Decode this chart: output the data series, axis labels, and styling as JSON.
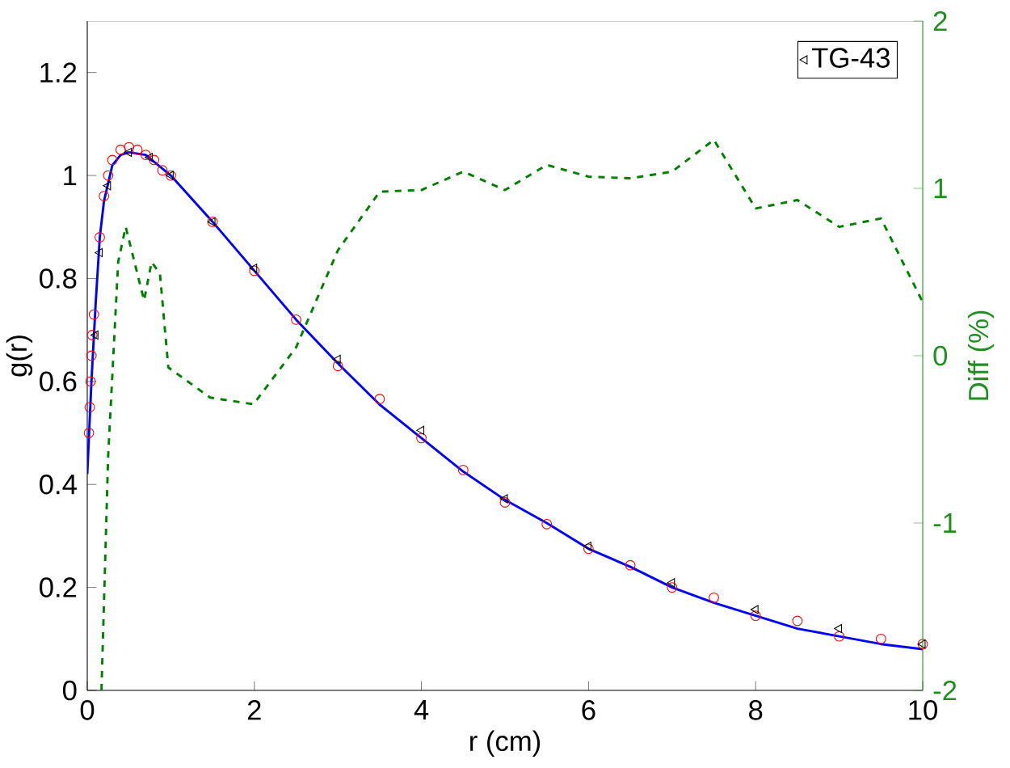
{
  "chart_data": {
    "type": "line",
    "xlabel": "r (cm)",
    "ylabel": "g(r)",
    "y2label": "Diff (%)",
    "xlim": [
      0,
      10
    ],
    "xticks": [
      0,
      2,
      4,
      6,
      8,
      10
    ],
    "ylim": [
      0,
      1.3
    ],
    "yticks": [
      0,
      0.2,
      0.4,
      0.6,
      0.8,
      1,
      1.2
    ],
    "y2lim": [
      -2,
      2
    ],
    "y2ticks": [
      -2,
      -1,
      0,
      1,
      2
    ],
    "legend": "top right",
    "grid": false,
    "series": [
      {
        "type": "scatter",
        "marker": "circle",
        "color": "#ff0000",
        "x": [
          0.02,
          0.03,
          0.04,
          0.05,
          0.06,
          0.08,
          0.15,
          0.2,
          0.25,
          0.3,
          0.4,
          0.5,
          0.6,
          0.7,
          0.8,
          0.9,
          1.0,
          1.5,
          2,
          2.5,
          3,
          3.5,
          4,
          4.5,
          5,
          5.5,
          6,
          6.5,
          7,
          7.5,
          8,
          8.5,
          9,
          9.5,
          10
        ],
        "values": [
          0.5,
          0.55,
          0.6,
          0.65,
          0.69,
          0.73,
          0.88,
          0.96,
          1.0,
          1.03,
          1.05,
          1.055,
          1.05,
          1.04,
          1.03,
          1.01,
          1.0,
          0.91,
          0.815,
          0.72,
          0.63,
          0.566,
          0.49,
          0.428,
          0.365,
          0.323,
          0.275,
          0.243,
          0.2,
          0.18,
          0.145,
          0.135,
          0.105,
          0.1,
          0.09
        ]
      },
      {
        "type": "scatter",
        "marker": "triangle",
        "color": "#000000",
        "name": "TG-43",
        "x": [
          0.1,
          0.15,
          0.25,
          0.5,
          0.75,
          1.0,
          1.5,
          2,
          3,
          4,
          5,
          6,
          7,
          8,
          9,
          10
        ],
        "values": [
          0.69,
          0.85,
          0.98,
          1.045,
          1.035,
          1.0,
          0.91,
          0.82,
          0.643,
          0.505,
          0.372,
          0.28,
          0.209,
          0.157,
          0.12,
          0.09
        ]
      },
      {
        "line_style": "solid",
        "color": "#0000ff",
        "x": [
          0,
          0.05,
          0.1,
          0.15,
          0.2,
          0.3,
          0.4,
          0.5,
          0.7,
          1.0,
          1.5,
          2,
          2.5,
          3,
          3.5,
          4,
          4.5,
          5,
          5.5,
          6,
          6.5,
          7,
          7.5,
          8,
          8.5,
          9,
          9.5,
          10
        ],
        "values": [
          0.42,
          0.6,
          0.75,
          0.88,
          0.95,
          1.02,
          1.04,
          1.045,
          1.04,
          1.0,
          0.91,
          0.815,
          0.72,
          0.635,
          0.555,
          0.49,
          0.425,
          0.37,
          0.325,
          0.275,
          0.24,
          0.2,
          0.17,
          0.145,
          0.12,
          0.105,
          0.09,
          0.08
        ]
      },
      {
        "line_style": "dashed",
        "axis": "y2",
        "color": "#008000",
        "x": [
          0.17,
          0.25,
          0.37,
          0.46,
          0.68,
          0.77,
          0.87,
          0.97,
          1.47,
          1.99,
          2.5,
          3,
          3.5,
          4,
          4.5,
          5,
          5.5,
          6,
          6.5,
          7,
          7.5,
          8,
          8.5,
          9,
          9.5,
          10
        ],
        "values": [
          -2,
          -0.6,
          0.56,
          0.77,
          0.33,
          0.56,
          0.49,
          -0.07,
          -0.25,
          -0.29,
          0.05,
          0.63,
          0.98,
          0.99,
          1.1,
          0.99,
          1.14,
          1.07,
          1.06,
          1.1,
          1.29,
          0.88,
          0.93,
          0.77,
          0.82,
          0.32
        ]
      }
    ]
  }
}
